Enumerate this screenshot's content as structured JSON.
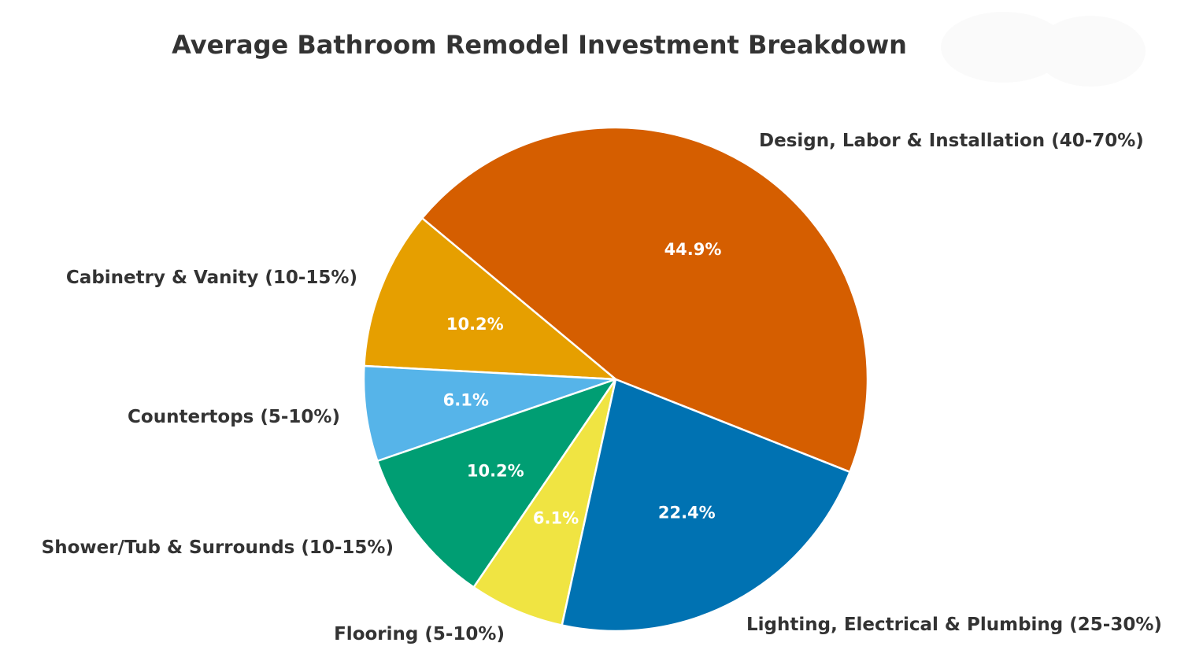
{
  "chart_data": {
    "type": "pie",
    "title": "Average Bathroom Remodel Investment Breakdown",
    "start_angle_deg": -21.6,
    "direction": "counterclockwise",
    "center": [
      782,
      482
    ],
    "radius": 320,
    "slices": [
      {
        "label": "Design, Labor & Installation (40-70%)",
        "value": 44.9,
        "pct_text": "44.9%",
        "color": "#D55E00"
      },
      {
        "label": "Cabinetry & Vanity (10-15%)",
        "value": 10.2,
        "pct_text": "10.2%",
        "color": "#E69F00"
      },
      {
        "label": "Countertops (5-10%)",
        "value": 6.1,
        "pct_text": "6.1%",
        "color": "#56B4E9"
      },
      {
        "label": "Shower/Tub & Surrounds (10-15%)",
        "value": 10.2,
        "pct_text": "10.2%",
        "color": "#009E73"
      },
      {
        "label": "Flooring (5-10%)",
        "value": 6.1,
        "pct_text": "6.1%",
        "color": "#F0E442"
      },
      {
        "label": "Lighting, Electrical & Plumbing (25-30%)",
        "value": 22.4,
        "pct_text": "22.4%",
        "color": "#0072B2"
      }
    ],
    "legend": "none (labels placed outside slices)",
    "grid": false
  }
}
